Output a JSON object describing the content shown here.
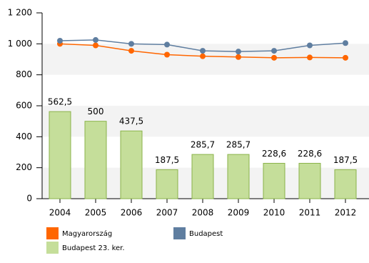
{
  "chart_data": {
    "type": "combo",
    "categories": [
      "2004",
      "2005",
      "2006",
      "2007",
      "2008",
      "2009",
      "2010",
      "2011",
      "2012"
    ],
    "series": [
      {
        "name": "Magyarország",
        "type": "line",
        "color": "#ff6600",
        "values": [
          1000,
          990,
          955,
          930,
          920,
          915,
          910,
          912,
          910
        ]
      },
      {
        "name": "Budapest",
        "type": "line",
        "color": "#5f7ea0",
        "values": [
          1020,
          1025,
          1000,
          995,
          955,
          950,
          955,
          990,
          1005
        ]
      },
      {
        "name": "Budapest 23. ker.",
        "type": "bar",
        "color": "#c5de9a",
        "values": [
          562.5,
          500,
          437.5,
          187.5,
          285.7,
          285.7,
          228.6,
          228.6,
          187.5
        ],
        "value_labels": [
          "562,5",
          "500",
          "437,5",
          "187,5",
          "285,7",
          "285,7",
          "228,6",
          "228,6",
          "187,5"
        ]
      }
    ],
    "ylim": [
      0,
      1200
    ],
    "yticks": [
      0,
      200,
      400,
      600,
      800,
      {
        "value": 1000,
        "label": "1 000"
      },
      {
        "value": 1200,
        "label": "1 200"
      }
    ],
    "grid": true
  }
}
